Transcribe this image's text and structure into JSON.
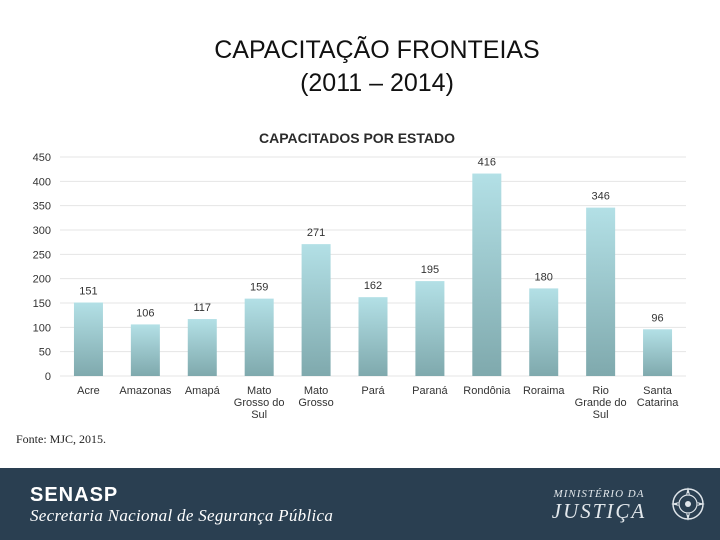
{
  "slide": {
    "title_line1": "CAPACITAÇÃO FRONTEIAS",
    "title_line2": "(2011 – 2014)",
    "source": "Fonte: MJC, 2015."
  },
  "footer": {
    "brand": "SENASP",
    "brand_sub": "Secretaria Nacional de Segurança Pública",
    "ministry_line1": "Ministério da",
    "ministry_line2": "Justiça",
    "background_color": "#2a3f51"
  },
  "chart_data": {
    "type": "bar",
    "title": "CAPACITADOS POR ESTADO",
    "categories": [
      "Acre",
      "Amazonas",
      "Amapá",
      "Mato Grosso do Sul",
      "Mato Grosso",
      "Pará",
      "Paraná",
      "Rondônia",
      "Roraima",
      "Rio Grande do Sul",
      "Santa Catarina"
    ],
    "category_labels": [
      [
        "Acre"
      ],
      [
        "Amazonas"
      ],
      [
        "Amapá"
      ],
      [
        "Mato",
        "Grosso do",
        "Sul"
      ],
      [
        "Mato",
        "Grosso"
      ],
      [
        "Pará"
      ],
      [
        "Paraná"
      ],
      [
        "Rondônia"
      ],
      [
        "Roraima"
      ],
      [
        "Rio",
        "Grande do",
        "Sul"
      ],
      [
        "Santa",
        "Catarina"
      ]
    ],
    "values": [
      151,
      106,
      117,
      159,
      271,
      162,
      195,
      416,
      180,
      346,
      96
    ],
    "ylim": [
      0,
      450
    ],
    "yticks": [
      0,
      50,
      100,
      150,
      200,
      250,
      300,
      350,
      400,
      450
    ],
    "grid": true,
    "data_labels": true,
    "bar_color_top": "#b3e0e6",
    "bar_color_bottom": "#7fa9ad"
  }
}
